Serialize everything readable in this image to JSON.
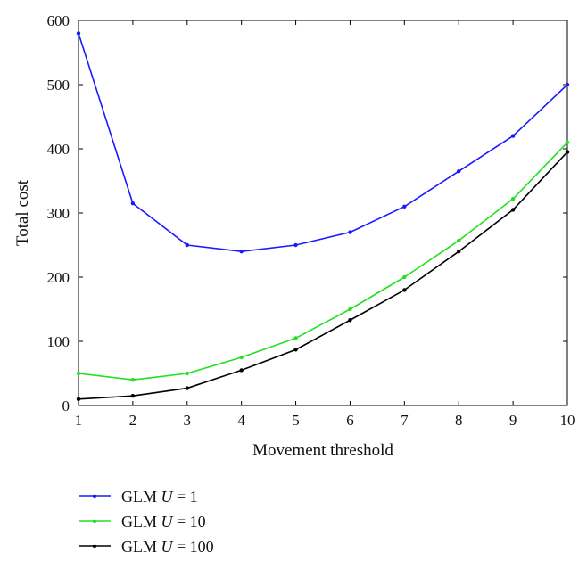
{
  "chart_data": {
    "type": "line",
    "title": "",
    "xlabel": "Movement threshold",
    "ylabel": "Total cost",
    "x": [
      1,
      2,
      3,
      4,
      5,
      6,
      7,
      8,
      9,
      10
    ],
    "xlim": [
      1,
      10
    ],
    "ylim": [
      0,
      600
    ],
    "xticks": [
      "1",
      "2",
      "3",
      "4",
      "5",
      "6",
      "7",
      "8",
      "9",
      "10"
    ],
    "yticks": [
      "0",
      "100",
      "200",
      "300",
      "400",
      "500",
      "600"
    ],
    "grid": false,
    "legend_position": "bottom-left, below plot",
    "series": [
      {
        "name": "GLM U = 1",
        "legend_prefix": "GLM",
        "legend_var": "U",
        "legend_suffix": "= 1",
        "color": "#1a1aff",
        "values": [
          580,
          315,
          250,
          240,
          250,
          270,
          310,
          365,
          420,
          500
        ]
      },
      {
        "name": "GLM U = 10",
        "legend_prefix": "GLM",
        "legend_var": "U",
        "legend_suffix": "= 10",
        "color": "#22e022",
        "values": [
          50,
          40,
          50,
          75,
          105,
          150,
          200,
          257,
          322,
          410
        ]
      },
      {
        "name": "GLM U = 100",
        "legend_prefix": "GLM",
        "legend_var": "U",
        "legend_suffix": "= 100",
        "color": "#000000",
        "values": [
          10,
          15,
          27,
          55,
          87,
          133,
          180,
          240,
          305,
          395
        ]
      }
    ]
  }
}
